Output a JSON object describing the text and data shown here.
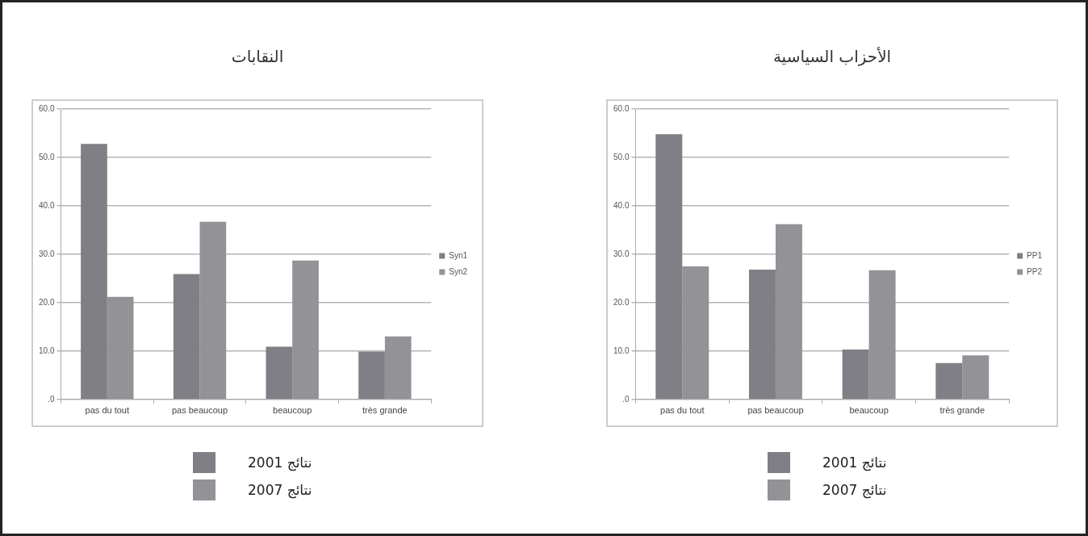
{
  "chart_data": [
    {
      "type": "bar",
      "title": "النقابات",
      "categories": [
        "pas du tout",
        "pas beaucoup",
        "beaucoup",
        "très grande"
      ],
      "series": [
        {
          "name": "Syn1",
          "color": "#7f7f85",
          "values": [
            52.8,
            25.9,
            10.9,
            9.9
          ]
        },
        {
          "name": "Syn2",
          "color": "#929297",
          "values": [
            21.2,
            36.7,
            28.7,
            13.0
          ]
        }
      ],
      "ylim": [
        0,
        60
      ],
      "yticks": [
        {
          "value": 0,
          "label": ".0"
        },
        {
          "value": 10,
          "label": "10.0"
        },
        {
          "value": 20,
          "label": "20.0"
        },
        {
          "value": 30,
          "label": "30.0"
        },
        {
          "value": 40,
          "label": "40.0"
        },
        {
          "value": 50,
          "label": "50.0"
        },
        {
          "value": 60,
          "label": "60.0"
        }
      ],
      "grid": "y",
      "legend": "right",
      "annotations": [
        "نتائج 2001",
        "نتائج 2007"
      ]
    },
    {
      "type": "bar",
      "title": "الأحزاب السياسية",
      "categories": [
        "pas du tout",
        "pas beaucoup",
        "beaucoup",
        "très grande"
      ],
      "series": [
        {
          "name": "PP1",
          "color": "#7f7f85",
          "values": [
            54.8,
            26.8,
            10.3,
            7.5
          ]
        },
        {
          "name": "PP2",
          "color": "#929297",
          "values": [
            27.5,
            36.2,
            26.7,
            9.1
          ]
        }
      ],
      "ylim": [
        0,
        60
      ],
      "yticks": [
        {
          "value": 0,
          "label": ".0"
        },
        {
          "value": 10,
          "label": "10.0"
        },
        {
          "value": 20,
          "label": "20.0"
        },
        {
          "value": 30,
          "label": "30.0"
        },
        {
          "value": 40,
          "label": "40.0"
        },
        {
          "value": 50,
          "label": "50.0"
        },
        {
          "value": 60,
          "label": "60.0"
        }
      ],
      "grid": "y",
      "legend": "right",
      "annotations": [
        "نتائج 2001",
        "نتائج 2007"
      ]
    }
  ]
}
